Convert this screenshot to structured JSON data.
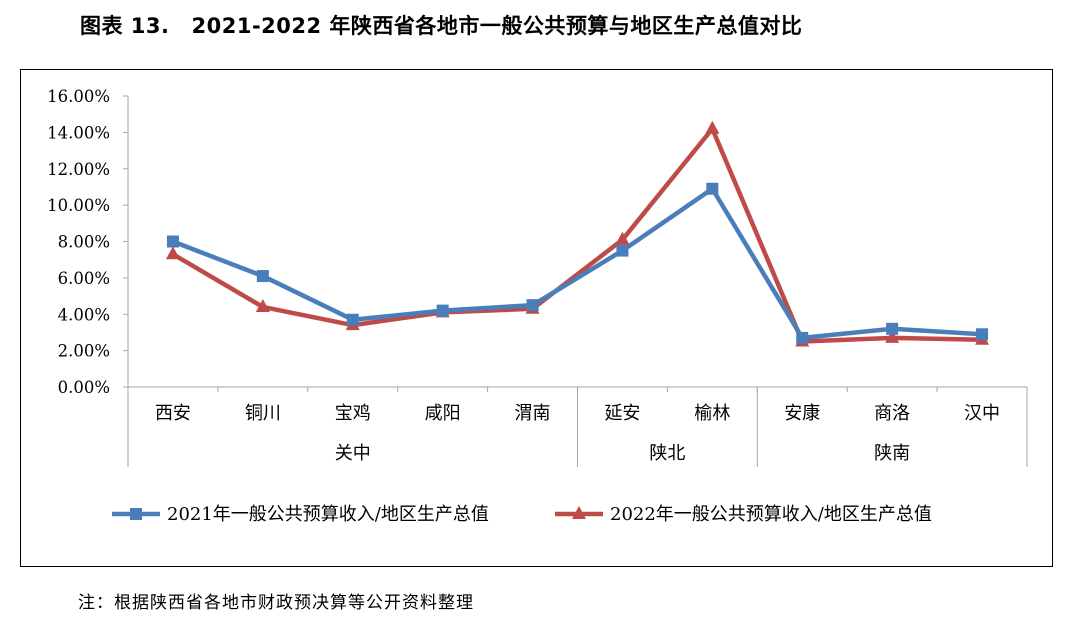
{
  "title": {
    "label": "图表 13.",
    "text": "2021-2022 年陕西省各地市一般公共预算与地区生产总值对比"
  },
  "note": "注：根据陕西省各地市财政预决算等公开资料整理",
  "chart_data": {
    "type": "line",
    "categories": [
      "西安",
      "铜川",
      "宝鸡",
      "咸阳",
      "渭南",
      "延安",
      "榆林",
      "安康",
      "商洛",
      "汉中"
    ],
    "groups": [
      {
        "name": "关中",
        "categories": [
          "西安",
          "铜川",
          "宝鸡",
          "咸阳",
          "渭南"
        ]
      },
      {
        "name": "陕北",
        "categories": [
          "延安",
          "榆林"
        ]
      },
      {
        "name": "陕南",
        "categories": [
          "安康",
          "商洛",
          "汉中"
        ]
      }
    ],
    "series": [
      {
        "name": "2021年一般公共预算收入/地区生产总值",
        "color": "#4a7ebb",
        "marker": "square",
        "values": [
          8.0,
          6.1,
          3.7,
          4.2,
          4.5,
          7.5,
          10.9,
          2.7,
          3.2,
          2.9
        ]
      },
      {
        "name": "2022年一般公共预算收入/地区生产总值",
        "color": "#be4b48",
        "marker": "triangle",
        "values": [
          7.3,
          4.4,
          3.4,
          4.1,
          4.3,
          8.1,
          14.2,
          2.5,
          2.7,
          2.6
        ]
      }
    ],
    "yticks": [
      "16.00%",
      "14.00%",
      "12.00%",
      "10.00%",
      "8.00%",
      "6.00%",
      "4.00%",
      "2.00%",
      "0.00%"
    ],
    "ylim": [
      0,
      16
    ],
    "grid": false,
    "legend_position": "bottom"
  }
}
